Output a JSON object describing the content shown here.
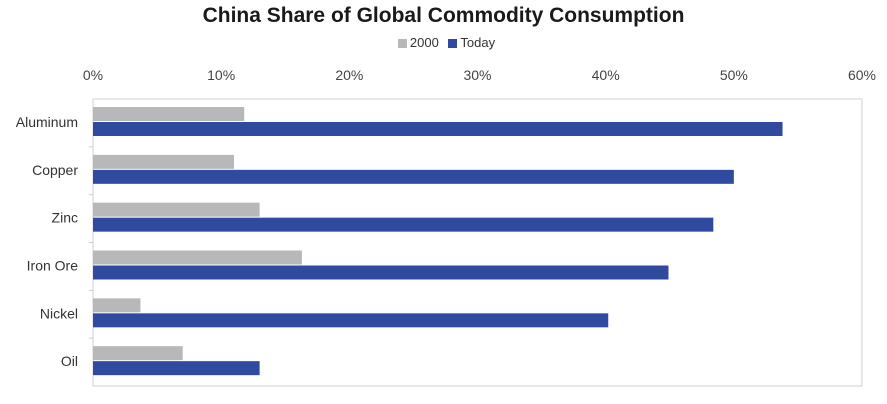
{
  "chart_data": {
    "type": "bar",
    "orientation": "horizontal",
    "title": "China Share of Global Commodity Consumption",
    "categories": [
      "Aluminum",
      "Copper",
      "Zinc",
      "Iron Ore",
      "Nickel",
      "Oil"
    ],
    "series": [
      {
        "name": "2000",
        "color": "#b8b8b8",
        "values": [
          11.8,
          11.0,
          13.0,
          16.3,
          3.7,
          7.0
        ]
      },
      {
        "name": "Today",
        "color": "#2f4a9e",
        "values": [
          53.8,
          50.0,
          48.4,
          44.9,
          40.2,
          13.0
        ]
      }
    ],
    "xlim": [
      0,
      60
    ],
    "xticks": [
      "0%",
      "10%",
      "20%",
      "30%",
      "40%",
      "50%",
      "60%"
    ],
    "xlabel": "",
    "ylabel": "",
    "grid": false,
    "legend": "top"
  }
}
